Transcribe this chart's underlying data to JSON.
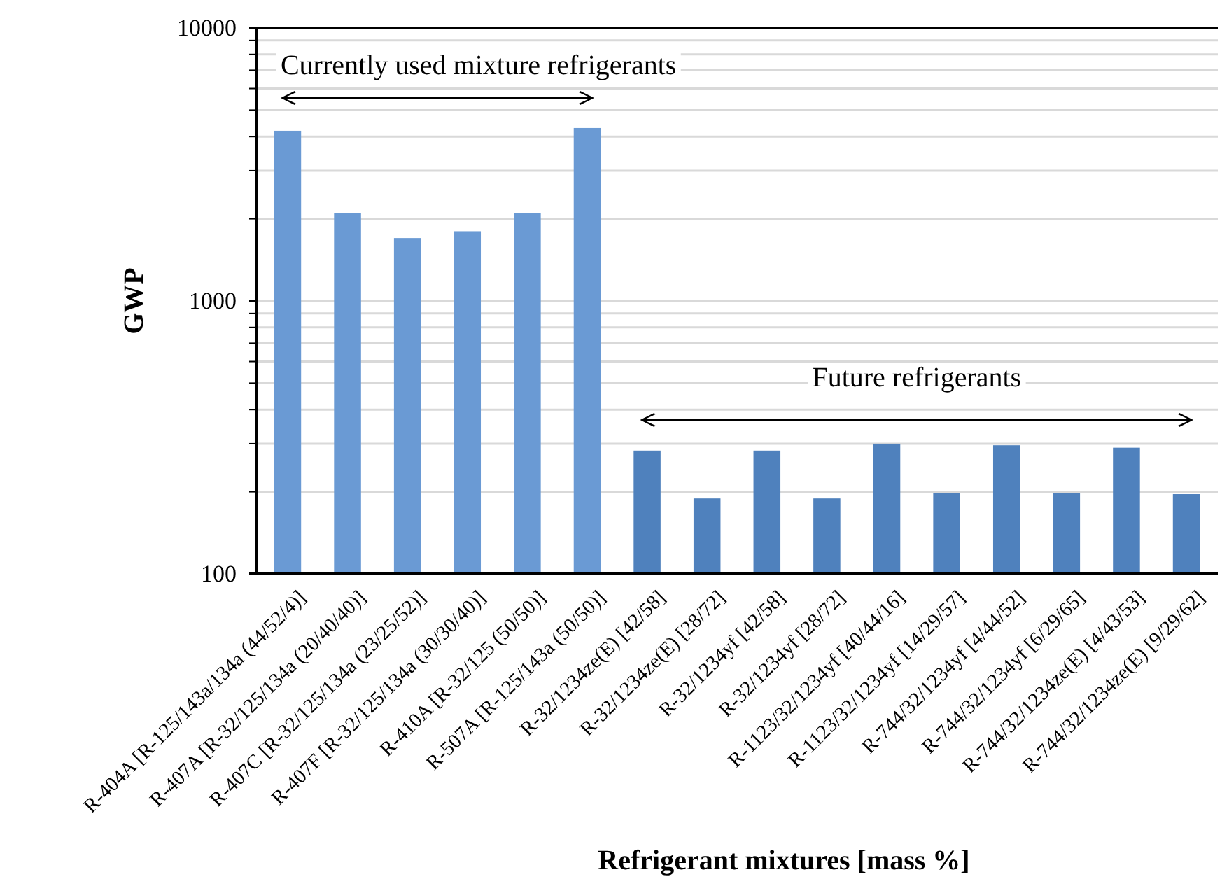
{
  "chart_data": {
    "type": "bar",
    "xlabel": "Refrigerant mixtures [mass %]",
    "ylabel": "GWP",
    "categories": [
      "R-404A [R-125/143a/134a (44/52/4)]",
      "R-407A [R-32/125/134a (20/40/40)]",
      "R-407C [R-32/125/134a (23/25/52)]",
      "R-407F [R-32/125/134a (30/30/40)]",
      "R-410A [R-32/125 (50/50)]",
      "R-507A [R-125/143a (50/50)]",
      "R-32/1234ze(E) [42/58]",
      "R-32/1234ze(E) [28/72]",
      "R-32/1234yf [42/58]",
      "R-32/1234yf [28/72]",
      "R-1123/32/1234yf [40/44/16]",
      "R-1123/32/1234yf [14/29/57]",
      "R-744/32/1234yf [4/44/52]",
      "R-744/32/1234yf [6/29/65]",
      "R-744/32/1234ze(E) [4/43/53]",
      "R-744/32/1234ze(E) [9/29/62]"
    ],
    "values": [
      4200,
      2100,
      1700,
      1800,
      2100,
      4300,
      283,
      189,
      283,
      189,
      300,
      198,
      296,
      198,
      290,
      196
    ],
    "colors": [
      "#6a9ad4",
      "#6a9ad4",
      "#6a9ad4",
      "#6a9ad4",
      "#6a9ad4",
      "#6a9ad4",
      "#4f81bd",
      "#4f81bd",
      "#4f81bd",
      "#4f81bd",
      "#4f81bd",
      "#4f81bd",
      "#4f81bd",
      "#4f81bd",
      "#4f81bd",
      "#4f81bd"
    ],
    "log": true,
    "ylim": [
      100,
      10000
    ],
    "yticks": [
      100,
      {
        "value": 200,
        "label": null
      },
      {
        "value": 300,
        "label": null
      },
      {
        "value": 400,
        "label": null
      },
      {
        "value": 500,
        "label": null
      },
      {
        "value": 600,
        "label": null
      },
      {
        "value": 700,
        "label": null
      },
      {
        "value": 800,
        "label": null
      },
      {
        "value": 900,
        "label": null
      },
      1000,
      {
        "value": 2000,
        "label": null
      },
      {
        "value": 3000,
        "label": null
      },
      {
        "value": 4000,
        "label": null
      },
      {
        "value": 5000,
        "label": null
      },
      {
        "value": 6000,
        "label": null
      },
      {
        "value": 7000,
        "label": null
      },
      {
        "value": 8000,
        "label": null
      },
      {
        "value": 9000,
        "label": null
      },
      10000
    ],
    "grid": "y",
    "annotations": [
      "Currently used mixture refrigerants",
      "Future refrigerants"
    ]
  }
}
